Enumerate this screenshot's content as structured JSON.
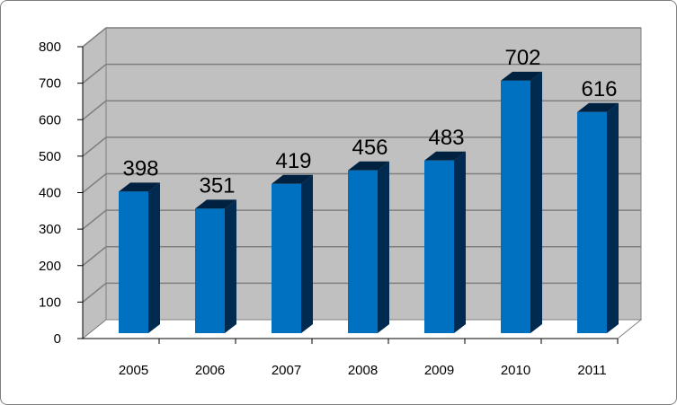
{
  "chart_data": {
    "type": "bar",
    "categories": [
      "2005",
      "2006",
      "2007",
      "2008",
      "2009",
      "2010",
      "2011"
    ],
    "values": [
      398,
      351,
      419,
      456,
      483,
      702,
      616
    ],
    "title": "",
    "xlabel": "",
    "ylabel": "",
    "ylim": [
      0,
      800
    ],
    "yticks": [
      "0",
      "100",
      "200",
      "300",
      "400",
      "500",
      "600",
      "700",
      "800"
    ],
    "grid": true,
    "legend": "none",
    "style": "3d-column",
    "colors": {
      "bar_front": "#0070c0",
      "bar_side": "#002a50",
      "bar_top": "#00213f",
      "wall": "#c0c0c0",
      "floor": "#ffffff",
      "gridline": "#7f7f7f"
    }
  }
}
